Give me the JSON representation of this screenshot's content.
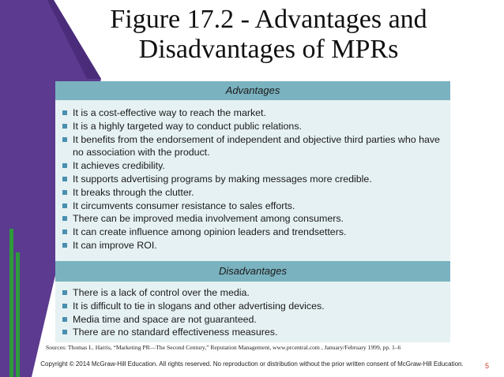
{
  "title": "Figure 17.2 - Advantages and Disadvantages of MPRs",
  "advantages": {
    "header": "Advantages",
    "items": [
      "It is a cost-effective way to reach the market.",
      "It is a highly targeted way to conduct public relations.",
      "It benefits from the endorsement of independent and objective third parties who have no association with the product.",
      "It achieves credibility.",
      "It supports advertising programs by making messages more credible.",
      "It breaks through the clutter.",
      "It circumvents consumer resistance to sales efforts.",
      "There can be improved media involvement among consumers.",
      "It can create influence among opinion leaders and trendsetters.",
      "It can improve ROI."
    ]
  },
  "disadvantages": {
    "header": "Disadvantages",
    "items": [
      "There is a lack of control over the media.",
      "It is difficult to tie in slogans and other advertising devices.",
      "Media time and space are not guaranteed.",
      "There are no standard effectiveness measures."
    ]
  },
  "sources": "Sources: Thomas L. Harris, “Marketing PR—The Second Century,” Reputation Management, www.prcentral.com , January/February 1999, pp. 1–6",
  "copyright": "Copyright © 2014 McGraw-Hill Education.  All rights reserved. No reproduction or distribution without the prior written consent of McGraw-Hill Education.",
  "page_number": "5",
  "colors": {
    "corner_purple": "#5b3a8f",
    "band": "#7ab2bf",
    "panel": "#e6f1f3",
    "bullet": "#4a8fb0",
    "accent_green": "#2e9a3a"
  }
}
